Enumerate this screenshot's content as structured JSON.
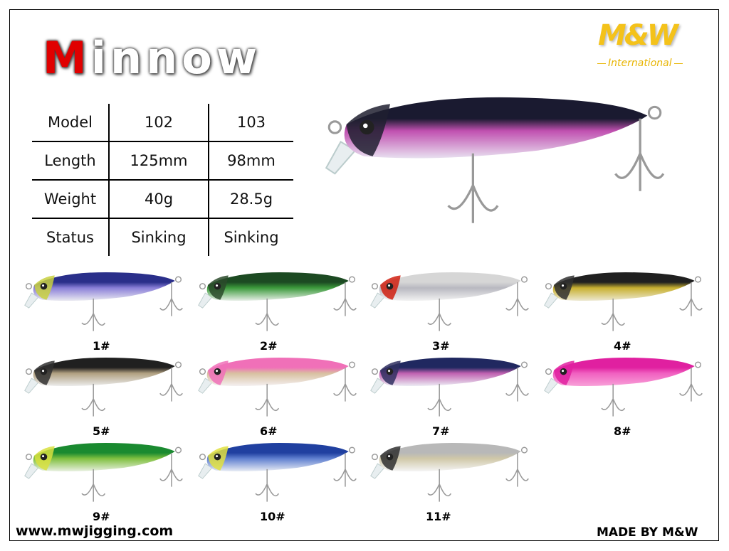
{
  "title": {
    "first_letter": "M",
    "rest": "innow"
  },
  "logo": {
    "brand": "M&W",
    "subtitle": "International"
  },
  "spec_table": {
    "rows": [
      [
        "Model",
        "102",
        "103"
      ],
      [
        "Length",
        "125mm",
        "98mm"
      ],
      [
        "Weight",
        "40g",
        "28.5g"
      ],
      [
        "Status",
        "Sinking",
        "Sinking"
      ]
    ]
  },
  "colors": [
    {
      "label": "1#",
      "back": "#2a2f8a",
      "mid": "#8a7fd8",
      "belly": "#e8e8f0",
      "head": "#c8d040"
    },
    {
      "label": "2#",
      "back": "#1c4a22",
      "mid": "#3c9a3c",
      "belly": "#e6eee6",
      "head": "#2a4a2a"
    },
    {
      "label": "3#",
      "back": "#d6d6d6",
      "mid": "#b8b8c0",
      "belly": "#f2f2f2",
      "head": "#d02010"
    },
    {
      "label": "4#",
      "back": "#202020",
      "mid": "#c8b030",
      "belly": "#ece8d0",
      "head": "#303030"
    },
    {
      "label": "5#",
      "back": "#202020",
      "mid": "#b0a080",
      "belly": "#ececec",
      "head": "#303030"
    },
    {
      "label": "6#",
      "back": "#f070b8",
      "mid": "#d8c0a0",
      "belly": "#f4f0f0",
      "head": "#f070b8"
    },
    {
      "label": "7#",
      "back": "#202860",
      "mid": "#c060b0",
      "belly": "#ececf4",
      "head": "#303060"
    },
    {
      "label": "8#",
      "back": "#e020a0",
      "mid": "#f060c0",
      "belly": "#f8a0d8",
      "head": "#e020a0"
    },
    {
      "label": "9#",
      "back": "#1a8a30",
      "mid": "#80c040",
      "belly": "#e8f0e0",
      "head": "#d8e040"
    },
    {
      "label": "10#",
      "back": "#2040a0",
      "mid": "#6080d0",
      "belly": "#e8ecf4",
      "head": "#e0e040"
    },
    {
      "label": "11#",
      "back": "#b8b8b8",
      "mid": "#d0c8a8",
      "belly": "#f4f4f4",
      "head": "#303030"
    }
  ],
  "hero_lure": {
    "back": "#1a1a30",
    "mid": "#c050b0",
    "belly": "#e8e0f0",
    "head": "#202030"
  },
  "footer": {
    "website": "www.mwjigging.com",
    "maker": "MADE BY M&W"
  }
}
